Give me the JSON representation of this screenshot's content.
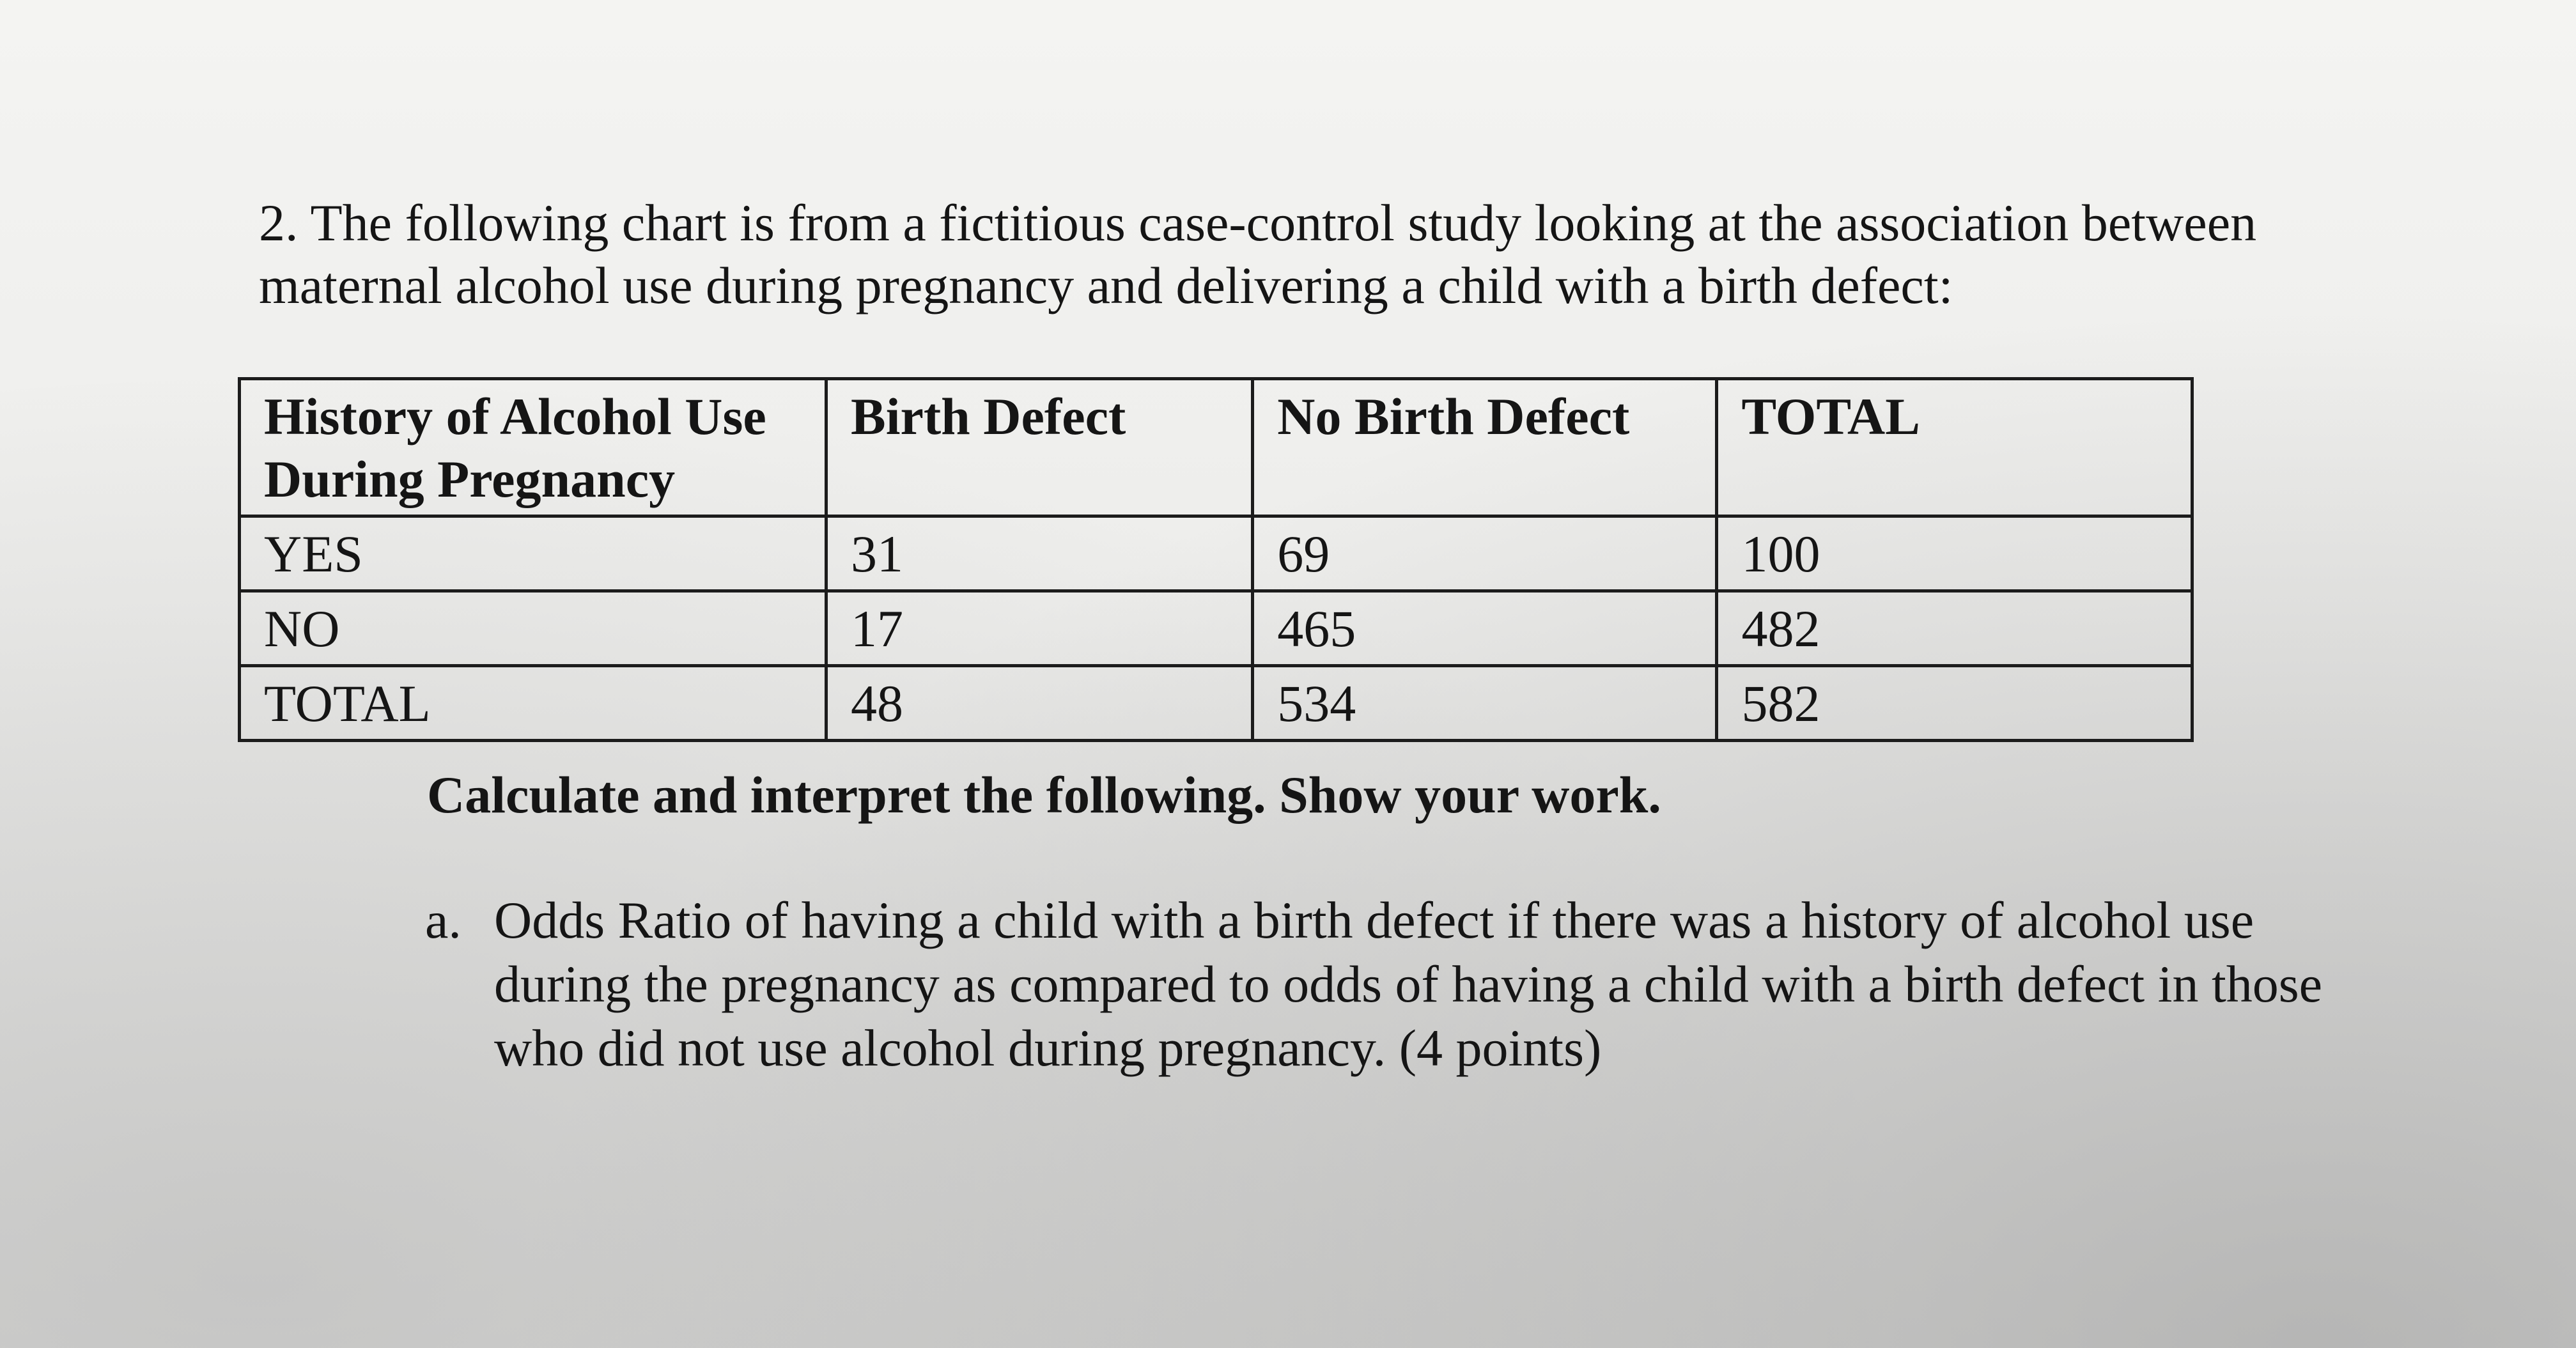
{
  "question": {
    "number": "2.",
    "text": "The following chart is from a fictitious case-control study looking at the association between maternal alcohol use during pregnancy and delivering a child with a birth defect:"
  },
  "table": {
    "headers": [
      "History of Alcohol Use During Pregnancy",
      "Birth Defect",
      "No Birth Defect",
      "TOTAL"
    ],
    "rows": [
      [
        "YES",
        "31",
        "69",
        "100"
      ],
      [
        "NO",
        "17",
        "465",
        "482"
      ],
      [
        "TOTAL",
        "48",
        "534",
        "582"
      ]
    ]
  },
  "instruction": "Calculate and interpret the following.  Show your work.",
  "subquestion": {
    "letter": "a.",
    "text": "Odds Ratio of having a child with a birth defect if there was a history of alcohol use during the pregnancy as compared to odds of having a child with a birth defect in those who did not use alcohol during pregnancy. (4 points)"
  }
}
